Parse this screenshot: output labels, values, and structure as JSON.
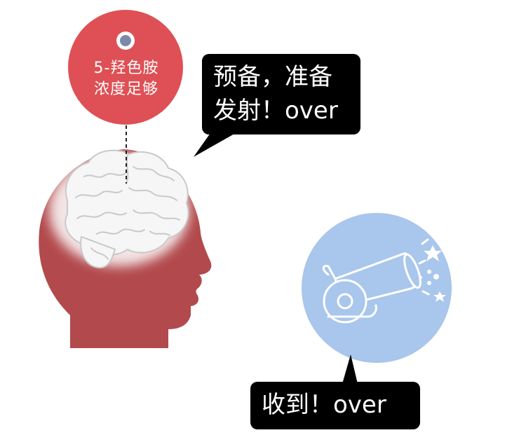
{
  "serotonin_label": {
    "line1": "5-羟色胺",
    "line2": "浓度足够"
  },
  "speech_top": {
    "line1": "预备，准备",
    "line2": "发射！over"
  },
  "speech_bottom": {
    "text": "收到！over"
  },
  "colors": {
    "head": "#b24a4d",
    "red_circle": "#de5055",
    "blue_circle": "#a9c6ec",
    "bubble": "#000000"
  }
}
